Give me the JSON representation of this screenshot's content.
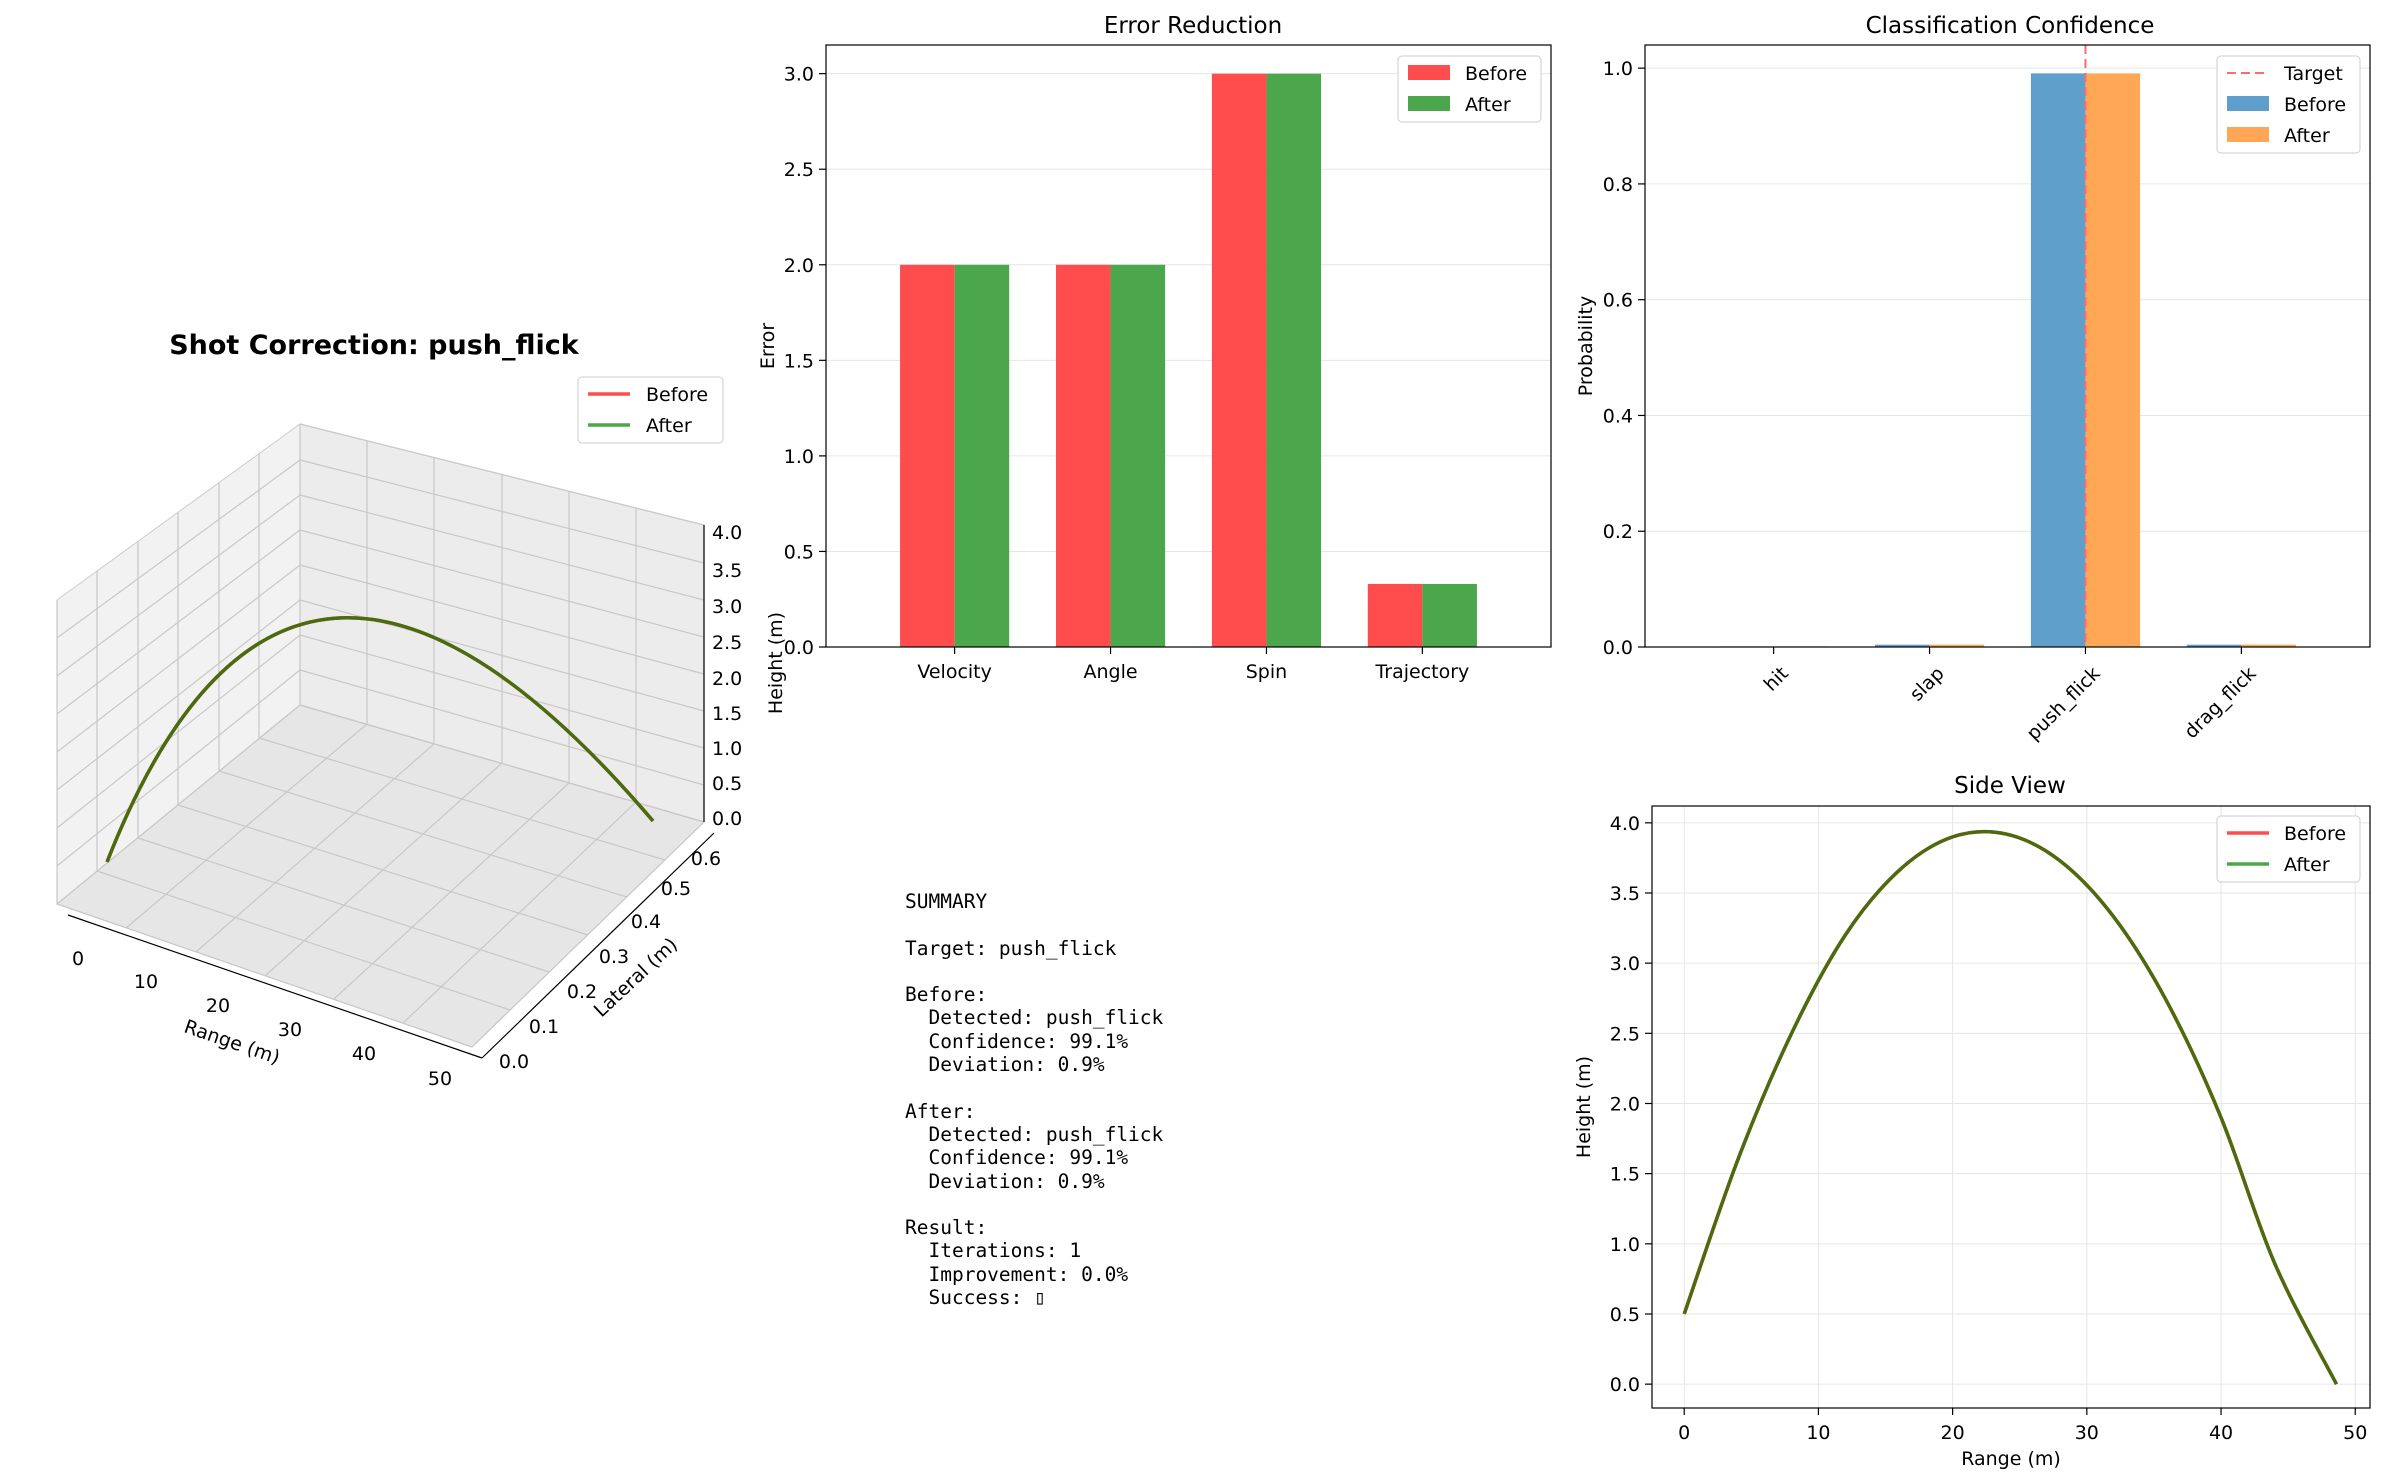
{
  "colors": {
    "before_red": "#ff4d4d",
    "after_green": "#4ca64c",
    "before_blue": "#5f9fcc",
    "after_orange": "#ffa756",
    "target_line": "#ff6b6b",
    "trajectory": "#4b6b0f",
    "grid": "#e6e6e6"
  },
  "trajectory3d": {
    "title": "Shot Correction: push_flick",
    "xlabel": "Range (m)",
    "ylabel": "Lateral (m)",
    "zlabel": "Height (m)",
    "xticks": [
      "0",
      "10",
      "20",
      "30",
      "40",
      "50"
    ],
    "yticks": [
      "0.0",
      "0.1",
      "0.2",
      "0.3",
      "0.4",
      "0.5",
      "0.6"
    ],
    "zticks": [
      "0.0",
      "0.5",
      "1.0",
      "1.5",
      "2.0",
      "2.5",
      "3.0",
      "3.5",
      "4.0"
    ],
    "legend": [
      "Before",
      "After"
    ]
  },
  "summary": {
    "lines": [
      "SUMMARY",
      "",
      "Target: push_flick",
      "",
      "Before:",
      "  Detected: push_flick",
      "  Confidence: 99.1%",
      "  Deviation: 0.9%",
      "",
      "After:",
      "  Detected: push_flick",
      "  Confidence: 99.1%",
      "  Deviation: 0.9%",
      "",
      "Result:",
      "  Iterations: 1",
      "  Improvement: 0.0%",
      "  Success: ▯"
    ]
  },
  "chart_data": [
    {
      "id": "error",
      "type": "bar",
      "title": "Error Reduction",
      "xlabel": "",
      "ylabel": "Error",
      "categories": [
        "Velocity",
        "Angle",
        "Spin",
        "Trajectory"
      ],
      "series": [
        {
          "name": "Before",
          "values": [
            2.0,
            2.0,
            3.0,
            0.33
          ]
        },
        {
          "name": "After",
          "values": [
            2.0,
            2.0,
            3.0,
            0.33
          ]
        }
      ],
      "ylim": [
        0,
        3.15
      ],
      "yticks": [
        "0.0",
        "0.5",
        "1.0",
        "1.5",
        "2.0",
        "2.5",
        "3.0"
      ],
      "grid": "y",
      "legend": "top-right"
    },
    {
      "id": "classification",
      "type": "bar",
      "title": "Classification Confidence",
      "xlabel": "",
      "ylabel": "Probability",
      "categories": [
        "hit",
        "slap",
        "push_flick",
        "drag_flick"
      ],
      "series": [
        {
          "name": "Before",
          "values": [
            0.001,
            0.004,
            0.991,
            0.004
          ]
        },
        {
          "name": "After",
          "values": [
            0.001,
            0.004,
            0.991,
            0.004
          ]
        }
      ],
      "target": {
        "name": "Target",
        "category": "push_flick"
      },
      "ylim": [
        0,
        1.04
      ],
      "yticks": [
        "0.0",
        "0.2",
        "0.4",
        "0.6",
        "0.8",
        "1.0"
      ],
      "grid": "y",
      "legend": "top-right"
    },
    {
      "id": "sideview",
      "type": "line",
      "title": "Side View",
      "xlabel": "Range (m)",
      "ylabel": "Height (m)",
      "xlim": [
        -2.4,
        51.1
      ],
      "ylim": [
        -0.17,
        4.12
      ],
      "xticks": [
        "0",
        "10",
        "20",
        "30",
        "40",
        "50"
      ],
      "yticks": [
        "0.0",
        "0.5",
        "1.0",
        "1.5",
        "2.0",
        "2.5",
        "3.0",
        "3.5",
        "4.0"
      ],
      "x": [
        0,
        4,
        8,
        12,
        16,
        20,
        24,
        28,
        32,
        36,
        40,
        44,
        48.6
      ],
      "series": [
        {
          "name": "Before",
          "values": [
            0.5,
            1.6,
            2.5,
            3.2,
            3.66,
            3.9,
            3.92,
            3.73,
            3.33,
            2.72,
            1.9,
            0.86,
            0.0
          ]
        },
        {
          "name": "After",
          "values": [
            0.5,
            1.6,
            2.5,
            3.2,
            3.66,
            3.9,
            3.92,
            3.73,
            3.33,
            2.72,
            1.9,
            0.86,
            0.0
          ]
        }
      ],
      "grid": true,
      "legend": "top-right"
    }
  ]
}
